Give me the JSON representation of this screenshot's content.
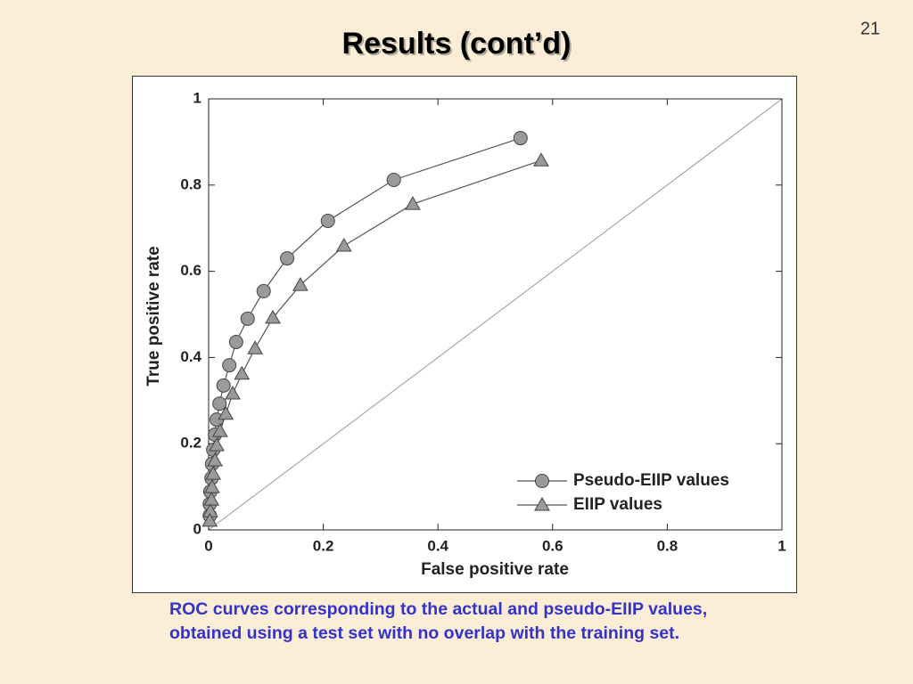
{
  "page_number": "21",
  "chart_data": {
    "type": "line",
    "title": "Results (cont’d)",
    "xlabel": "False positive rate",
    "ylabel": "True positive rate",
    "caption": "ROC curves corresponding to the actual and pseudo-EIIP values, obtained using a test set with no overlap with the training set.",
    "xlim": [
      0,
      1
    ],
    "ylim": [
      0,
      1
    ],
    "xticks": [
      0,
      0.2,
      0.4,
      0.6,
      0.8,
      1
    ],
    "yticks": [
      0,
      0.2,
      0.4,
      0.6,
      0.8,
      1
    ],
    "legend": "lower right",
    "series": [
      {
        "name": "Pseudo-EIIP values",
        "color": "#9a9a9a",
        "marker": "circle",
        "x": [
          0.544,
          0.323,
          0.208,
          0.137,
          0.096,
          0.068,
          0.048,
          0.036,
          0.026,
          0.019,
          0.014,
          0.011,
          0.008,
          0.006,
          0.005,
          0.003,
          0.002,
          0.002
        ],
        "values": [
          0.909,
          0.812,
          0.717,
          0.63,
          0.554,
          0.49,
          0.436,
          0.382,
          0.335,
          0.293,
          0.256,
          0.221,
          0.186,
          0.153,
          0.12,
          0.089,
          0.06,
          0.033
        ]
      },
      {
        "name": "EIIP values",
        "color": "#9a9a9a",
        "marker": "triangle",
        "x": [
          0.58,
          0.356,
          0.236,
          0.16,
          0.112,
          0.081,
          0.058,
          0.042,
          0.03,
          0.02,
          0.014,
          0.011,
          0.008,
          0.006,
          0.005,
          0.003,
          0.002
        ],
        "values": [
          0.857,
          0.756,
          0.659,
          0.568,
          0.492,
          0.421,
          0.362,
          0.316,
          0.269,
          0.229,
          0.196,
          0.161,
          0.13,
          0.099,
          0.07,
          0.043,
          0.021
        ]
      }
    ]
  }
}
